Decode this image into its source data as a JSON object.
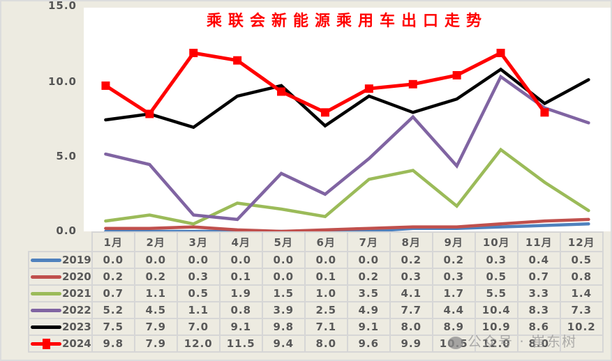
{
  "chart_data": {
    "type": "line",
    "title": "乘联会新能源乘用车出口走势",
    "xlabel": "",
    "ylabel": "",
    "ylim": [
      0,
      15
    ],
    "yticks": [
      "0.0",
      "5.0",
      "10.0",
      "15.0"
    ],
    "grid": false,
    "legend_position": "data-table-left",
    "categories": [
      "1月",
      "2月",
      "3月",
      "4月",
      "5月",
      "6月",
      "7月",
      "8月",
      "9月",
      "10月",
      "11月",
      "12月"
    ],
    "series": [
      {
        "name": "2019",
        "color": "#4f81bd",
        "marker": "none",
        "values": [
          0.0,
          0.0,
          0.0,
          0.0,
          0.0,
          0.0,
          0.0,
          0.2,
          0.2,
          0.3,
          0.4,
          0.5
        ],
        "labels": [
          "0.0",
          "0.0",
          "0.0",
          "0.0",
          "0.0",
          "0.0",
          "0.0",
          "0.2",
          "0.2",
          "0.3",
          "0.4",
          "0.5"
        ]
      },
      {
        "name": "2020",
        "color": "#c0504d",
        "marker": "none",
        "values": [
          0.2,
          0.2,
          0.3,
          0.1,
          0.0,
          0.1,
          0.2,
          0.3,
          0.3,
          0.5,
          0.7,
          0.8
        ],
        "labels": [
          "0.2",
          "0.2",
          "0.3",
          "0.1",
          "0.0",
          "0.1",
          "0.2",
          "0.3",
          "0.3",
          "0.5",
          "0.7",
          "0.8"
        ]
      },
      {
        "name": "2021",
        "color": "#9bbb59",
        "marker": "none",
        "values": [
          0.7,
          1.1,
          0.5,
          1.9,
          1.5,
          1.0,
          3.5,
          4.1,
          1.7,
          5.5,
          3.3,
          1.4
        ],
        "labels": [
          "0.7",
          "1.1",
          "0.5",
          "1.9",
          "1.5",
          "1.0",
          "3.5",
          "4.1",
          "1.7",
          "5.5",
          "3.3",
          "1.4"
        ]
      },
      {
        "name": "2022",
        "color": "#8064a2",
        "marker": "none",
        "values": [
          5.2,
          4.5,
          1.1,
          0.8,
          3.9,
          2.5,
          4.9,
          7.7,
          4.4,
          10.4,
          8.3,
          7.3
        ],
        "labels": [
          "5.2",
          "4.5",
          "1.1",
          "0.8",
          "3.9",
          "2.5",
          "4.9",
          "7.7",
          "4.4",
          "10.4",
          "8.3",
          "7.3"
        ]
      },
      {
        "name": "2023",
        "color": "#000000",
        "marker": "none",
        "values": [
          7.5,
          7.9,
          7.0,
          9.1,
          9.8,
          7.1,
          9.1,
          8.0,
          8.9,
          10.9,
          8.6,
          10.2
        ],
        "labels": [
          "7.5",
          "7.9",
          "7.0",
          "9.1",
          "9.8",
          "7.1",
          "9.1",
          "8.0",
          "8.9",
          "10.9",
          "8.6",
          "10.2"
        ]
      },
      {
        "name": "2024",
        "color": "#ff0000",
        "marker": "square",
        "values": [
          9.8,
          7.9,
          12.0,
          11.5,
          9.4,
          8.0,
          9.6,
          9.9,
          10.5,
          12.0,
          8.0,
          null
        ],
        "labels": [
          "9.8",
          "7.9",
          "12.0",
          "11.5",
          "9.4",
          "8.0",
          "9.6",
          "9.9",
          "10.5",
          "12.0",
          "8.0",
          ""
        ]
      }
    ]
  },
  "watermark": "公众号 · 崔东树"
}
